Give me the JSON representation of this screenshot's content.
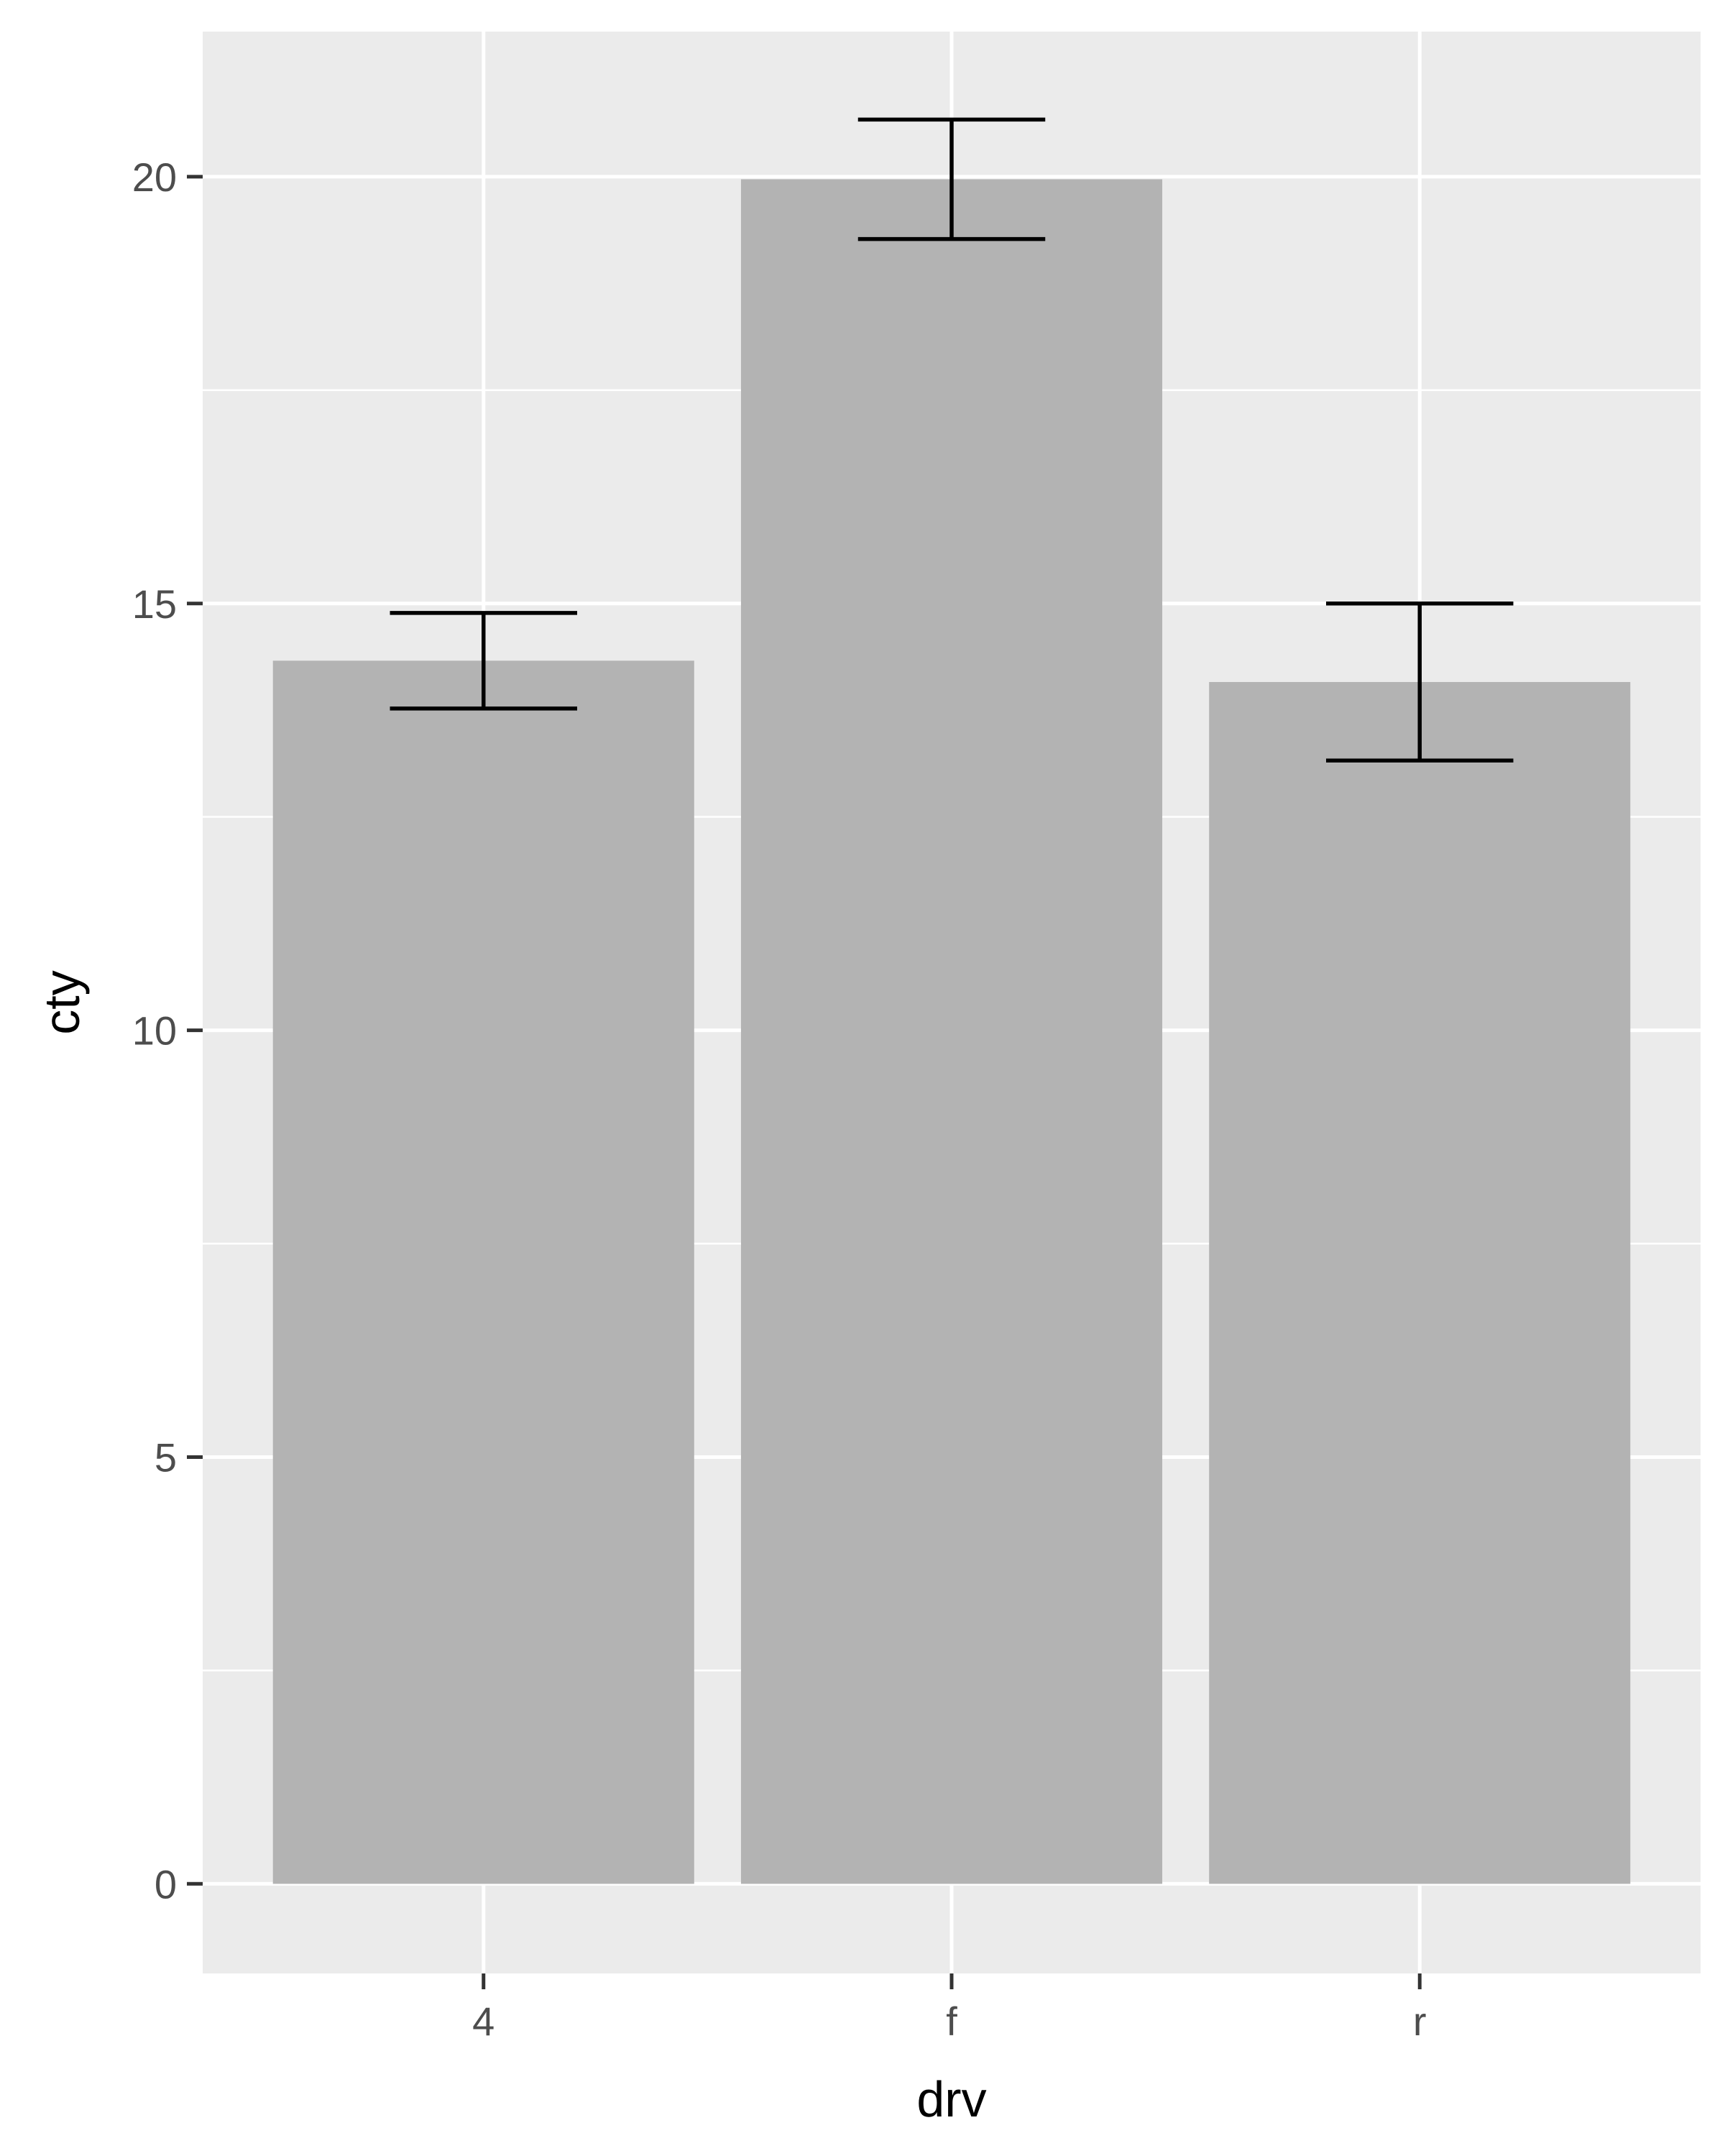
{
  "chart_data": {
    "type": "bar",
    "title": "",
    "xlabel": "drv",
    "ylabel": "cty",
    "categories": [
      "4",
      "f",
      "r"
    ],
    "values": [
      14.33,
      19.97,
      14.08
    ],
    "error_bars": [
      {
        "lower": 13.77,
        "upper": 14.89
      },
      {
        "lower": 19.27,
        "upper": 20.67
      },
      {
        "lower": 13.16,
        "upper": 15.0
      }
    ],
    "ylim": [
      -1.05,
      21.7
    ],
    "yticks": [
      0,
      5,
      10,
      15,
      20
    ],
    "grid": true,
    "colors": {
      "panel": "#ebebeb",
      "grid": "#ffffff",
      "bar": "#b3b3b3",
      "errorbar": "#000000",
      "tick": "#333333"
    }
  }
}
